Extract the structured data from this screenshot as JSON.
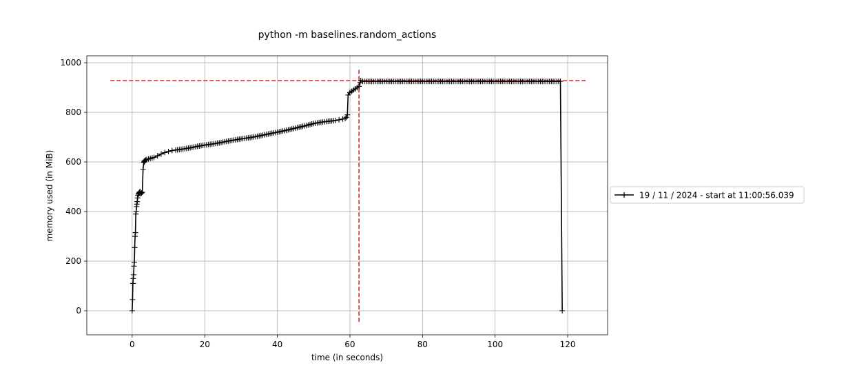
{
  "chart_data": {
    "type": "line",
    "title": "python -m baselines.random_actions",
    "xlabel": "time (in seconds)",
    "ylabel": "memory used (in MiB)",
    "xlim": [
      -12.5,
      131
    ],
    "ylim": [
      -97,
      1028
    ],
    "x_ticks": [
      0,
      20,
      40,
      60,
      80,
      100,
      120
    ],
    "y_ticks": [
      0,
      200,
      400,
      600,
      800,
      1000
    ],
    "grid": true,
    "legend_position": "center-right-outside",
    "colors": {
      "series": "#000000",
      "reference": "#d62728",
      "grid": "#b0b0b0",
      "frame": "#000000"
    },
    "series": [
      {
        "name": "19 / 11 / 2024 - start at 11:00:56.039",
        "marker": "+",
        "x": [
          0.0,
          0.1,
          0.2,
          0.3,
          0.4,
          0.5,
          0.6,
          0.7,
          0.8,
          0.9,
          1.0,
          1.1,
          1.2,
          1.3,
          1.4,
          1.5,
          1.6,
          1.7,
          1.8,
          1.9,
          2.0,
          2.2,
          2.4,
          2.6,
          2.8,
          3.0,
          3.2,
          3.3,
          3.4,
          3.5,
          3.7,
          4.0,
          4.5,
          5.0,
          5.5,
          6.0,
          7.0,
          8.0,
          9.0,
          10.0,
          11.0,
          12.0,
          14.0,
          16.0,
          18.0,
          20.0,
          22.0,
          24.0,
          26.0,
          28.0,
          30.0,
          32.0,
          34.0,
          36.0,
          38.0,
          40.0,
          42.0,
          44.0,
          46.0,
          48.0,
          50.0,
          52.0,
          54.0,
          56.0,
          57.0,
          58.0,
          58.7,
          59.0,
          59.3,
          59.5,
          60.0,
          60.5,
          61.0,
          61.5,
          62.0,
          62.5,
          62.8,
          63.0,
          63.5,
          64.0,
          66.0,
          70.0,
          80.0,
          90.0,
          100.0,
          110.0,
          115.0,
          118.0,
          118.5
        ],
        "y": [
          0,
          45,
          110,
          130,
          145,
          180,
          195,
          255,
          300,
          315,
          390,
          400,
          420,
          430,
          440,
          455,
          465,
          470,
          472,
          475,
          478,
          480,
          472,
          475,
          478,
          570,
          598,
          603,
          600,
          605,
          608,
          610,
          612,
          614,
          616,
          618,
          625,
          632,
          638,
          642,
          646,
          648,
          652,
          657,
          663,
          668,
          672,
          677,
          683,
          688,
          693,
          697,
          702,
          708,
          714,
          720,
          726,
          733,
          740,
          747,
          755,
          760,
          764,
          767,
          770,
          773,
          775,
          780,
          790,
          870,
          880,
          885,
          890,
          895,
          900,
          905,
          920,
          928,
          925,
          925,
          925,
          925,
          925,
          925,
          925,
          925,
          925,
          925,
          0
        ]
      }
    ],
    "reference_lines": {
      "horizontal": {
        "y": 928,
        "x_range": [
          -6,
          125
        ]
      },
      "vertical": {
        "x": 62.5,
        "y_range": [
          -45,
          975
        ]
      }
    }
  }
}
